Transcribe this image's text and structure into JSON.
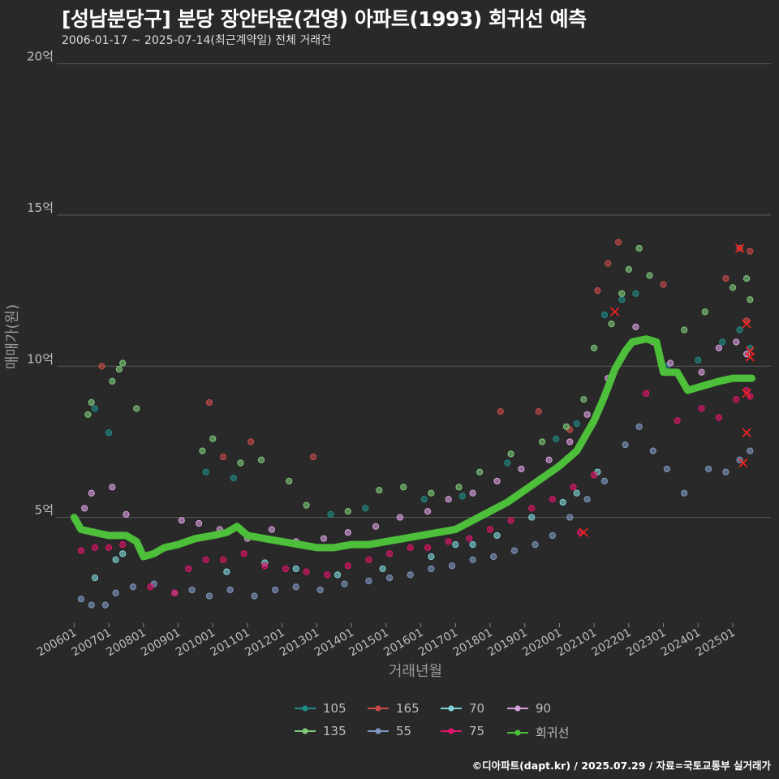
{
  "title": "[성남분당구] 분당 장안타운(건영) 아파트(1993) 회귀선 예측",
  "subtitle": "2006-01-17 ~ 2025-07-14(최근계약일) 전체 거래건",
  "footer": "©디아파트(dapt.kr) / 2025.07.29 / 자료=국토교통부 실거래가",
  "chart_data": {
    "type": "scatter",
    "xlabel": "거래년월",
    "ylabel": "매매가(원)",
    "x_range": [
      "2006-01",
      "2025-07"
    ],
    "ylim": [
      1.5,
      20.5
    ],
    "y_ticks": [
      {
        "value": 5,
        "label": "5억"
      },
      {
        "value": 10,
        "label": "10억"
      },
      {
        "value": 15,
        "label": "15억"
      },
      {
        "value": 20,
        "label": "20억"
      }
    ],
    "x_ticks": [
      "200601",
      "200701",
      "200801",
      "200901",
      "201001",
      "201101",
      "201201",
      "201301",
      "201401",
      "201501",
      "201601",
      "201701",
      "201801",
      "201901",
      "202001",
      "202101",
      "202201",
      "202301",
      "202401",
      "202501"
    ],
    "grid": "horizontal",
    "legend_position": "bottom",
    "series": [
      {
        "name": "105",
        "color": "#1f8a86",
        "points": [
          [
            2006.6,
            8.6
          ],
          [
            2007.0,
            7.8
          ],
          [
            2009.8,
            6.5
          ],
          [
            2010.6,
            6.3
          ],
          [
            2013.4,
            5.1
          ],
          [
            2014.4,
            5.3
          ],
          [
            2016.1,
            5.6
          ],
          [
            2017.2,
            5.7
          ],
          [
            2018.5,
            6.8
          ],
          [
            2019.9,
            7.6
          ],
          [
            2020.5,
            8.1
          ],
          [
            2021.3,
            11.7
          ],
          [
            2021.8,
            12.2
          ],
          [
            2022.2,
            12.4
          ],
          [
            2023.1,
            10.0
          ],
          [
            2024.0,
            10.2
          ],
          [
            2024.7,
            10.8
          ],
          [
            2025.2,
            11.2
          ],
          [
            2025.5,
            10.6
          ]
        ]
      },
      {
        "name": "165",
        "color": "#c94a4a",
        "points": [
          [
            2006.8,
            10.0
          ],
          [
            2009.9,
            8.8
          ],
          [
            2010.3,
            7.0
          ],
          [
            2011.1,
            7.5
          ],
          [
            2012.9,
            7.0
          ],
          [
            2018.3,
            8.5
          ],
          [
            2019.4,
            8.5
          ],
          [
            2020.3,
            7.9
          ],
          [
            2021.1,
            12.5
          ],
          [
            2021.4,
            13.4
          ],
          [
            2021.7,
            14.1
          ],
          [
            2023.0,
            12.7
          ],
          [
            2024.8,
            12.9
          ],
          [
            2025.2,
            13.9
          ],
          [
            2025.5,
            13.8
          ],
          [
            2025.4,
            11.5
          ]
        ]
      },
      {
        "name": "70",
        "color": "#7dd3d6",
        "points": [
          [
            2006.6,
            3.0
          ],
          [
            2007.2,
            3.6
          ],
          [
            2007.4,
            3.8
          ],
          [
            2010.4,
            3.2
          ],
          [
            2011.5,
            3.5
          ],
          [
            2012.4,
            3.3
          ],
          [
            2013.6,
            3.1
          ],
          [
            2014.9,
            3.3
          ],
          [
            2016.3,
            3.7
          ],
          [
            2017.0,
            4.1
          ],
          [
            2017.5,
            4.1
          ],
          [
            2018.2,
            4.4
          ],
          [
            2019.2,
            5.0
          ],
          [
            2020.1,
            5.5
          ],
          [
            2020.5,
            5.8
          ],
          [
            2021.1,
            6.5
          ]
        ]
      },
      {
        "name": "90",
        "color": "#d9a0de",
        "points": [
          [
            2006.3,
            5.3
          ],
          [
            2006.5,
            5.8
          ],
          [
            2007.1,
            6.0
          ],
          [
            2007.5,
            5.1
          ],
          [
            2009.1,
            4.9
          ],
          [
            2009.6,
            4.8
          ],
          [
            2010.2,
            4.6
          ],
          [
            2011.0,
            4.3
          ],
          [
            2011.7,
            4.6
          ],
          [
            2012.4,
            4.2
          ],
          [
            2013.2,
            4.3
          ],
          [
            2013.9,
            4.5
          ],
          [
            2014.7,
            4.7
          ],
          [
            2015.4,
            5.0
          ],
          [
            2016.2,
            5.2
          ],
          [
            2016.8,
            5.6
          ],
          [
            2017.5,
            5.8
          ],
          [
            2018.2,
            6.2
          ],
          [
            2018.9,
            6.6
          ],
          [
            2019.7,
            6.9
          ],
          [
            2020.3,
            7.5
          ],
          [
            2020.8,
            8.4
          ],
          [
            2021.4,
            9.6
          ],
          [
            2022.2,
            11.3
          ],
          [
            2022.7,
            10.8
          ],
          [
            2023.2,
            10.1
          ],
          [
            2024.1,
            9.8
          ],
          [
            2024.6,
            10.6
          ],
          [
            2025.1,
            10.8
          ],
          [
            2025.4,
            10.4
          ]
        ]
      },
      {
        "name": "135",
        "color": "#7ec97a",
        "points": [
          [
            2006.5,
            8.8
          ],
          [
            2006.4,
            8.4
          ],
          [
            2007.1,
            9.5
          ],
          [
            2007.3,
            9.9
          ],
          [
            2007.4,
            10.1
          ],
          [
            2007.8,
            8.6
          ],
          [
            2009.7,
            7.2
          ],
          [
            2010.0,
            7.6
          ],
          [
            2010.8,
            6.8
          ],
          [
            2011.4,
            6.9
          ],
          [
            2012.2,
            6.2
          ],
          [
            2012.7,
            5.4
          ],
          [
            2013.9,
            5.2
          ],
          [
            2014.8,
            5.9
          ],
          [
            2015.5,
            6.0
          ],
          [
            2016.3,
            5.8
          ],
          [
            2017.1,
            6.0
          ],
          [
            2017.7,
            6.5
          ],
          [
            2018.6,
            7.1
          ],
          [
            2019.5,
            7.5
          ],
          [
            2020.2,
            8.0
          ],
          [
            2020.7,
            8.9
          ],
          [
            2021.0,
            10.6
          ],
          [
            2021.5,
            11.4
          ],
          [
            2021.8,
            12.4
          ],
          [
            2022.0,
            13.2
          ],
          [
            2022.3,
            13.9
          ],
          [
            2022.6,
            13.0
          ],
          [
            2023.6,
            11.2
          ],
          [
            2024.2,
            11.8
          ],
          [
            2025.0,
            12.6
          ],
          [
            2025.4,
            12.9
          ],
          [
            2025.5,
            12.2
          ]
        ]
      },
      {
        "name": "55",
        "color": "#7f97c0",
        "points": [
          [
            2006.2,
            2.3
          ],
          [
            2006.5,
            2.1
          ],
          [
            2006.9,
            2.1
          ],
          [
            2007.2,
            2.5
          ],
          [
            2007.7,
            2.7
          ],
          [
            2008.3,
            2.8
          ],
          [
            2008.9,
            2.5
          ],
          [
            2009.4,
            2.6
          ],
          [
            2009.9,
            2.4
          ],
          [
            2010.5,
            2.6
          ],
          [
            2011.2,
            2.4
          ],
          [
            2011.8,
            2.6
          ],
          [
            2012.4,
            2.7
          ],
          [
            2013.1,
            2.6
          ],
          [
            2013.8,
            2.8
          ],
          [
            2014.5,
            2.9
          ],
          [
            2015.1,
            3.0
          ],
          [
            2015.7,
            3.1
          ],
          [
            2016.3,
            3.3
          ],
          [
            2016.9,
            3.4
          ],
          [
            2017.5,
            3.6
          ],
          [
            2018.1,
            3.7
          ],
          [
            2018.7,
            3.9
          ],
          [
            2019.3,
            4.1
          ],
          [
            2019.8,
            4.4
          ],
          [
            2020.3,
            5.0
          ],
          [
            2020.8,
            5.6
          ],
          [
            2021.3,
            6.2
          ],
          [
            2021.9,
            7.4
          ],
          [
            2022.3,
            8.0
          ],
          [
            2022.7,
            7.2
          ],
          [
            2023.1,
            6.6
          ],
          [
            2023.6,
            5.8
          ],
          [
            2024.3,
            6.6
          ],
          [
            2024.8,
            6.5
          ],
          [
            2025.2,
            6.9
          ],
          [
            2025.5,
            7.2
          ]
        ]
      },
      {
        "name": "75",
        "color": "#e0156a",
        "points": [
          [
            2006.2,
            3.9
          ],
          [
            2006.6,
            4.0
          ],
          [
            2007.0,
            4.0
          ],
          [
            2007.4,
            4.1
          ],
          [
            2008.2,
            2.7
          ],
          [
            2008.9,
            2.5
          ],
          [
            2009.3,
            3.3
          ],
          [
            2009.8,
            3.6
          ],
          [
            2010.3,
            3.6
          ],
          [
            2010.9,
            3.8
          ],
          [
            2011.5,
            3.4
          ],
          [
            2012.1,
            3.3
          ],
          [
            2012.7,
            3.2
          ],
          [
            2013.3,
            3.1
          ],
          [
            2013.9,
            3.4
          ],
          [
            2014.5,
            3.6
          ],
          [
            2015.1,
            3.8
          ],
          [
            2015.7,
            4.0
          ],
          [
            2016.2,
            4.0
          ],
          [
            2016.8,
            4.2
          ],
          [
            2017.4,
            4.3
          ],
          [
            2018.0,
            4.6
          ],
          [
            2018.6,
            4.9
          ],
          [
            2019.2,
            5.3
          ],
          [
            2019.8,
            5.6
          ],
          [
            2020.4,
            6.0
          ],
          [
            2020.6,
            4.5
          ],
          [
            2021.0,
            6.4
          ],
          [
            2022.5,
            9.1
          ],
          [
            2023.4,
            8.2
          ],
          [
            2024.1,
            8.6
          ],
          [
            2024.6,
            8.3
          ],
          [
            2025.1,
            8.9
          ],
          [
            2025.4,
            9.2
          ],
          [
            2025.5,
            9.0
          ]
        ]
      },
      {
        "name": "회귀선",
        "color": "#4dbf3a",
        "points": [
          [
            2006.0,
            5.0
          ],
          [
            2006.2,
            4.6
          ],
          [
            2006.6,
            4.5
          ],
          [
            2007.0,
            4.4
          ],
          [
            2007.5,
            4.4
          ],
          [
            2007.8,
            4.2
          ],
          [
            2008.0,
            3.7
          ],
          [
            2008.3,
            3.8
          ],
          [
            2008.6,
            4.0
          ],
          [
            2009.0,
            4.1
          ],
          [
            2009.5,
            4.3
          ],
          [
            2010.0,
            4.4
          ],
          [
            2010.4,
            4.5
          ],
          [
            2010.7,
            4.7
          ],
          [
            2011.0,
            4.4
          ],
          [
            2011.5,
            4.3
          ],
          [
            2012.0,
            4.2
          ],
          [
            2012.5,
            4.1
          ],
          [
            2013.0,
            4.0
          ],
          [
            2013.5,
            4.0
          ],
          [
            2014.0,
            4.1
          ],
          [
            2014.5,
            4.1
          ],
          [
            2015.0,
            4.2
          ],
          [
            2015.5,
            4.3
          ],
          [
            2016.0,
            4.4
          ],
          [
            2016.5,
            4.5
          ],
          [
            2017.0,
            4.6
          ],
          [
            2017.5,
            4.9
          ],
          [
            2018.0,
            5.2
          ],
          [
            2018.5,
            5.5
          ],
          [
            2019.0,
            5.9
          ],
          [
            2019.5,
            6.3
          ],
          [
            2020.0,
            6.7
          ],
          [
            2020.5,
            7.2
          ],
          [
            2021.0,
            8.2
          ],
          [
            2021.3,
            9.0
          ],
          [
            2021.6,
            9.9
          ],
          [
            2021.9,
            10.5
          ],
          [
            2022.1,
            10.8
          ],
          [
            2022.5,
            10.9
          ],
          [
            2022.8,
            10.8
          ],
          [
            2023.0,
            9.8
          ],
          [
            2023.4,
            9.8
          ],
          [
            2023.7,
            9.2
          ],
          [
            2024.0,
            9.3
          ],
          [
            2024.3,
            9.4
          ],
          [
            2024.6,
            9.5
          ],
          [
            2025.0,
            9.6
          ],
          [
            2025.3,
            9.6
          ],
          [
            2025.55,
            9.6
          ]
        ]
      }
    ],
    "highlight_marks": [
      [
        2021.6,
        11.8
      ],
      [
        2025.2,
        13.9
      ],
      [
        2025.4,
        11.4
      ],
      [
        2025.5,
        10.5
      ],
      [
        2025.5,
        10.3
      ],
      [
        2025.4,
        9.1
      ],
      [
        2025.4,
        7.8
      ],
      [
        2025.3,
        6.8
      ],
      [
        2020.7,
        4.5
      ]
    ]
  }
}
